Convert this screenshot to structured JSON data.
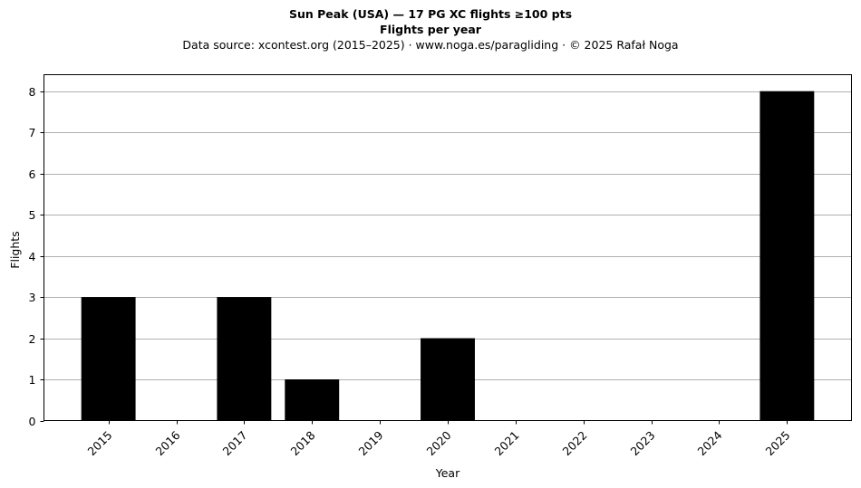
{
  "chart": {
    "title_line1": "Sun Peak (USA)  —  17 PG XC flights ≥100 pts",
    "title_line2": "Flights per year",
    "subtitle": "Data source: xcontest.org (2015–2025)  ·  www.noga.es/paragliding  ·  © 2025 Rafał Noga"
  },
  "chart_data": {
    "type": "bar",
    "categories": [
      "2015",
      "2016",
      "2017",
      "2018",
      "2019",
      "2020",
      "2021",
      "2022",
      "2023",
      "2024",
      "2025"
    ],
    "values": [
      3,
      0,
      3,
      1,
      0,
      2,
      0,
      0,
      0,
      0,
      8
    ],
    "title": "Sun Peak (USA)  —  17 PG XC flights ≥100 pts",
    "subtitle": "Flights per year",
    "xlabel": "Year",
    "ylabel": "Flights",
    "ylim": [
      0,
      8.4
    ],
    "yticks": [
      "0",
      "1",
      "2",
      "3",
      "4",
      "5",
      "6",
      "7",
      "8"
    ],
    "grid": "horizontal",
    "bar_color": "#000000",
    "grid_color": "#b0b0b0"
  }
}
